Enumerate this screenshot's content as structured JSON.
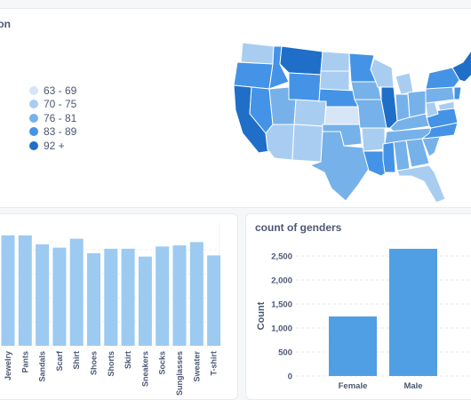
{
  "map_card": {
    "title": "ion",
    "legend": [
      {
        "label": "63 - 69",
        "color": "#d6e6f7"
      },
      {
        "label": "70 - 75",
        "color": "#a9cdf1"
      },
      {
        "label": "76 - 81",
        "color": "#76b1ea"
      },
      {
        "label": "83 - 89",
        "color": "#4493e6"
      },
      {
        "label": "92 +",
        "color": "#1f6ec7"
      }
    ]
  },
  "bar_card": {
    "chart_data": {
      "type": "bar",
      "categories": [
        "Jewelry",
        "Pants",
        "Sandals",
        "Scarf",
        "Shirt",
        "Shoes",
        "Shorts",
        "Skirt",
        "Sneakers",
        "Socks",
        "Sunglasses",
        "Sweater",
        "T-shirt"
      ],
      "values": [
        99,
        99,
        91,
        88,
        96,
        83,
        87,
        87,
        80,
        89,
        90,
        93,
        81
      ],
      "ylim": [
        0,
        110
      ],
      "bar_color": "#9ccaf1"
    }
  },
  "gender_card": {
    "title": "count of genders",
    "chart_data": {
      "type": "bar",
      "categories": [
        "Female",
        "Male"
      ],
      "values": [
        1240,
        2650
      ],
      "ylabel": "Count",
      "yticks": [
        "0",
        "500",
        "1,000",
        "1,500",
        "2,000",
        "2,500"
      ],
      "ylim": [
        0,
        2800
      ],
      "bar_color": "#509ee3"
    }
  }
}
